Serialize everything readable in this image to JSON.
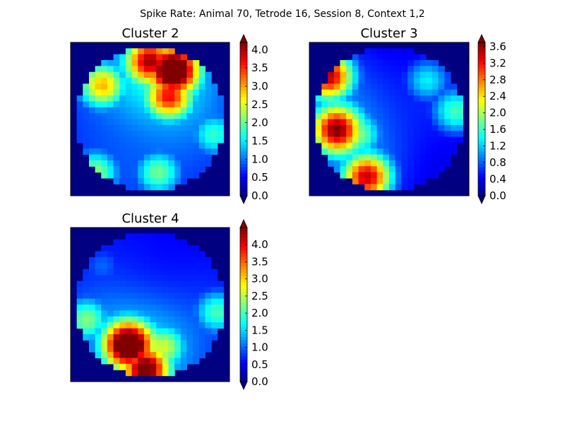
{
  "figure": {
    "title": "Spike Rate: Animal 70, Tetrode 16, Session 8, Context 1,2"
  },
  "colormap": "jet",
  "chart_data": [
    {
      "type": "heatmap",
      "title": "Cluster 2",
      "colorbar": {
        "ticks": [
          "0.0",
          "0.5",
          "1.0",
          "1.5",
          "2.0",
          "2.5",
          "3.0",
          "3.5",
          "4.0"
        ],
        "vmin": 0,
        "vmax": 4.2,
        "extend": "both"
      },
      "arena": "circular",
      "hotspots": [
        {
          "x": 0.65,
          "y": 0.18,
          "value": 4.1
        },
        {
          "x": 0.5,
          "y": 0.12,
          "value": 3.4
        },
        {
          "x": 0.62,
          "y": 0.35,
          "value": 3.2
        },
        {
          "x": 0.2,
          "y": 0.28,
          "value": 2.6
        },
        {
          "x": 0.15,
          "y": 0.85,
          "value": 1.9
        },
        {
          "x": 0.55,
          "y": 0.85,
          "value": 1.8
        },
        {
          "x": 0.9,
          "y": 0.6,
          "value": 1.6
        }
      ],
      "baseline": 0.9
    },
    {
      "type": "heatmap",
      "title": "Cluster 3",
      "colorbar": {
        "ticks": [
          "0.0",
          "0.4",
          "0.8",
          "1.2",
          "1.6",
          "2.0",
          "2.4",
          "2.8",
          "3.2",
          "3.6"
        ],
        "vmin": 0,
        "vmax": 3.7,
        "extend": "both"
      },
      "arena": "circular",
      "hotspots": [
        {
          "x": 0.17,
          "y": 0.57,
          "value": 3.0
        },
        {
          "x": 0.36,
          "y": 0.88,
          "value": 3.0
        },
        {
          "x": 0.12,
          "y": 0.22,
          "value": 3.1
        },
        {
          "x": 0.3,
          "y": 0.6,
          "value": 1.7
        },
        {
          "x": 0.92,
          "y": 0.45,
          "value": 1.4
        },
        {
          "x": 0.74,
          "y": 0.25,
          "value": 1.2
        }
      ],
      "baseline": 0.5
    },
    {
      "type": "heatmap",
      "title": "Cluster 4",
      "colorbar": {
        "ticks": [
          "0.0",
          "0.5",
          "1.0",
          "1.5",
          "2.0",
          "2.5",
          "3.0",
          "3.5",
          "4.0"
        ],
        "vmin": 0,
        "vmax": 4.5,
        "extend": "both"
      },
      "arena": "circular",
      "hotspots": [
        {
          "x": 0.36,
          "y": 0.76,
          "value": 4.4
        },
        {
          "x": 0.47,
          "y": 0.92,
          "value": 4.1
        },
        {
          "x": 0.58,
          "y": 0.78,
          "value": 2.3
        },
        {
          "x": 0.1,
          "y": 0.6,
          "value": 2.0
        },
        {
          "x": 0.92,
          "y": 0.55,
          "value": 1.8
        },
        {
          "x": 0.2,
          "y": 0.25,
          "value": 0.9
        }
      ],
      "baseline": 0.9
    }
  ]
}
